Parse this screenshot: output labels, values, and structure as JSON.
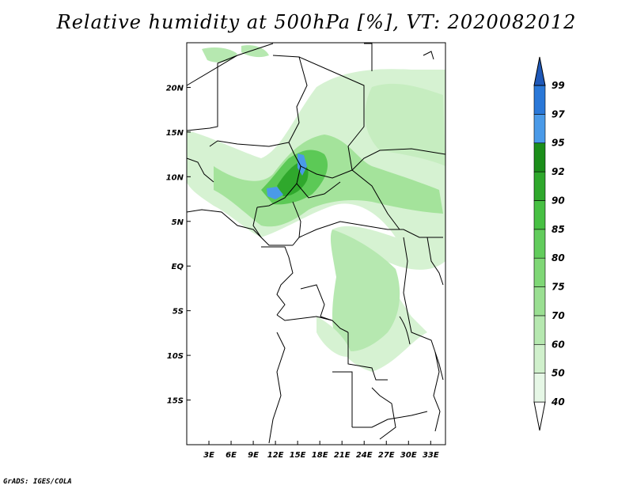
{
  "title": "Relative humidity at 500hPa [%], VT: 2020082012",
  "footer": "GrADS: IGES/COLA",
  "map": {
    "lon_range": [
      0,
      35
    ],
    "lat_range": [
      -20,
      25
    ],
    "x_ticks": [
      "3E",
      "6E",
      "9E",
      "12E",
      "15E",
      "18E",
      "21E",
      "24E",
      "27E",
      "30E",
      "33E"
    ],
    "x_tick_values": [
      3,
      6,
      9,
      12,
      15,
      18,
      21,
      24,
      27,
      30,
      33
    ],
    "y_ticks": [
      "20N",
      "15N",
      "10N",
      "5N",
      "EQ",
      "5S",
      "10S",
      "15S"
    ],
    "y_tick_values": [
      20,
      15,
      10,
      5,
      0,
      -5,
      -10,
      -15
    ]
  },
  "colorbar": {
    "labels": [
      "40",
      "50",
      "60",
      "70",
      "75",
      "80",
      "85",
      "90",
      "92",
      "95",
      "97",
      "99"
    ],
    "colors": [
      "#e6f7e6",
      "#d0f0cc",
      "#b6e8b0",
      "#9adf92",
      "#7fd776",
      "#62cc5c",
      "#47c043",
      "#2fa82c",
      "#1b8e1a",
      "#4a9ae8",
      "#2a78d8",
      "#1a5ac0"
    ],
    "top_color": "#1e58b8"
  }
}
